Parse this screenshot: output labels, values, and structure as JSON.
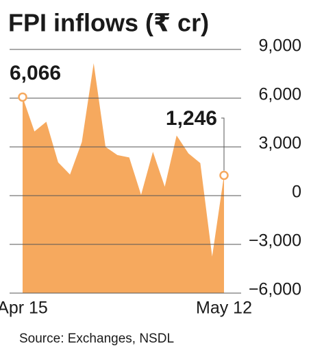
{
  "chart_data": {
    "type": "area",
    "title": "FPI inflows (₹ cr)",
    "source": "Source: Exchanges, NSDL",
    "categories": [
      "Apr 15",
      null,
      null,
      null,
      null,
      null,
      null,
      null,
      null,
      null,
      null,
      null,
      null,
      null,
      null,
      null,
      null,
      "May 12"
    ],
    "values": [
      6066,
      3950,
      4550,
      2050,
      1300,
      3300,
      8150,
      3000,
      2500,
      2350,
      50,
      2700,
      550,
      3700,
      2600,
      2000,
      -3750,
      1246
    ],
    "value_labels": [
      "6,066",
      null,
      null,
      null,
      null,
      null,
      null,
      null,
      null,
      null,
      null,
      null,
      null,
      null,
      null,
      null,
      null,
      "1,246"
    ],
    "color": "#f6a95e",
    "ylim": [
      -6000,
      9000
    ],
    "yticks": [
      {
        "value": 9000,
        "label": "9,000"
      },
      {
        "value": 6000,
        "label": "6,000"
      },
      {
        "value": 3000,
        "label": "3,000"
      },
      0,
      {
        "value": -3000,
        "label": "−3,000"
      },
      {
        "value": -6000,
        "label": "−6,000"
      }
    ],
    "grid": true
  }
}
